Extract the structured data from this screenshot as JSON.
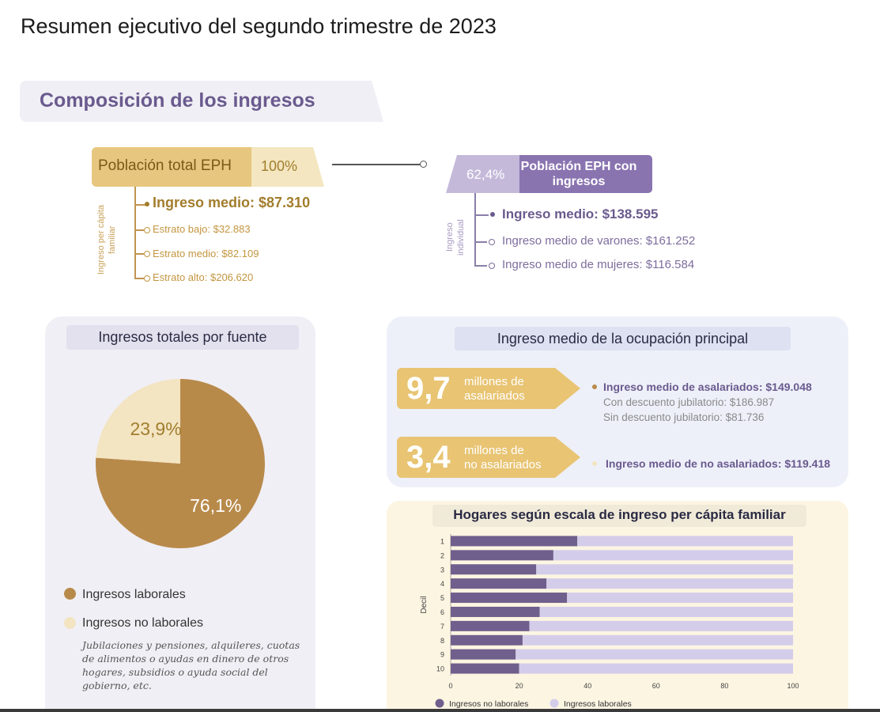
{
  "page_title": "Resumen ejecutivo del segundo trimestre de 2023",
  "section_title": "Composición de los ingresos",
  "poblacion_total": {
    "label": "Población total EPH",
    "pct": "100%",
    "axis_label": "Ingreso per cápita familiar",
    "ingreso_medio": "Ingreso medio: $87.310",
    "estratos": [
      "Estrato bajo: $32.883",
      "Estrato medio: $82.109",
      "Estrato alto: $206.620"
    ]
  },
  "poblacion_con_ingresos": {
    "pct": "62,4%",
    "label": "Población EPH con ingresos",
    "axis_label": "Ingreso individual",
    "ingreso_medio": "Ingreso medio: $138.595",
    "items": [
      "Ingreso medio de varones: $161.252",
      "Ingreso medio de mujeres: $116.584"
    ]
  },
  "colors": {
    "gold": "#b88a4a",
    "cream": "#f3e4c2",
    "purple_dark": "#6f5f8c",
    "purple_light": "#d4cdea"
  },
  "pie": {
    "title": "Ingresos totales por fuente",
    "slice_labels": [
      "76,1%",
      "23,9%"
    ],
    "legend": [
      {
        "label": "Ingresos laborales",
        "color": "#b88a4a"
      },
      {
        "label": "Ingresos no laborales",
        "color": "#f3e4c2"
      }
    ],
    "note": "Jubilaciones y pensiones, alquileres, cuotas de alimentos o ayudas en dinero de otros hogares, subsidios o ayuda social del gobierno, etc."
  },
  "ocupacion": {
    "title": "Ingreso medio de la ocupación principal",
    "asalariados": {
      "big": "9,7",
      "small1": "millones de",
      "small2": "asalariados",
      "main": "Ingreso medio de asalariados: $149.048",
      "sub1": "Con descuento jubilatorio: $186.987",
      "sub2": "Sin descuento jubilatorio: $81.736"
    },
    "no_asalariados": {
      "big": "3,4",
      "small1": "millones de",
      "small2": "no asalariados",
      "main": "Ingreso medio de no asalariados: $119.418"
    }
  },
  "chart_data": [
    {
      "type": "pie",
      "title": "Ingresos totales por fuente",
      "categories": [
        "Ingresos laborales",
        "Ingresos no laborales"
      ],
      "values": [
        76.1,
        23.9
      ]
    },
    {
      "type": "bar",
      "orientation": "horizontal",
      "stacked": true,
      "title": "Hogares según escala de ingreso per cápita familiar",
      "ylabel": "Decil",
      "xlabel": "",
      "categories": [
        "1",
        "2",
        "3",
        "4",
        "5",
        "6",
        "7",
        "8",
        "9",
        "10"
      ],
      "series": [
        {
          "name": "Ingresos no laborales",
          "values": [
            37,
            30,
            25,
            28,
            34,
            26,
            23,
            21,
            19,
            20
          ]
        },
        {
          "name": "Ingresos laborales",
          "values": [
            63,
            70,
            75,
            72,
            66,
            74,
            77,
            79,
            81,
            80
          ]
        }
      ],
      "xlim": [
        0,
        100
      ],
      "xticks": [
        "0",
        "20",
        "40",
        "60",
        "80",
        "100"
      ],
      "legend": "bottom"
    }
  ]
}
